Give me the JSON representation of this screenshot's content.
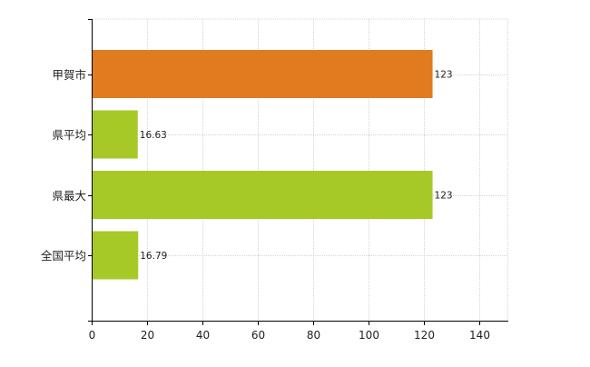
{
  "chart_data": {
    "type": "bar",
    "orientation": "horizontal",
    "title": "",
    "xlabel": "",
    "ylabel": "",
    "categories": [
      "甲賀市",
      "県平均",
      "県最大",
      "全国平均"
    ],
    "values": [
      123,
      16.63,
      123,
      16.79
    ],
    "value_labels": [
      "123",
      "16.63",
      "123",
      "16.79"
    ],
    "xlim": [
      0,
      150
    ],
    "x_ticks": [
      0,
      20,
      40,
      60,
      80,
      100,
      120,
      140
    ],
    "grid": true,
    "legend": "none",
    "bar_colors": [
      "#e07b20",
      "#a6c928",
      "#a6c928",
      "#a6c928"
    ]
  }
}
